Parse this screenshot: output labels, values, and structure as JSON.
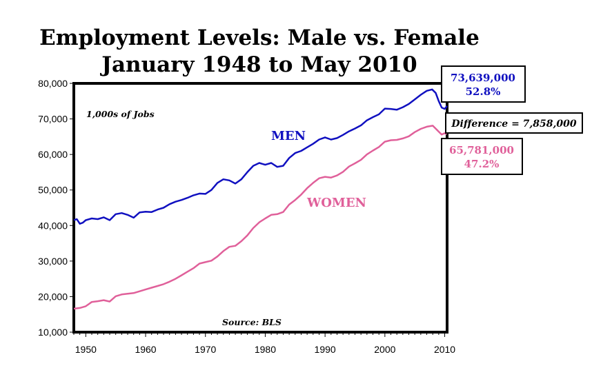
{
  "chart_data": {
    "type": "line",
    "title": "Employment Levels: Male vs. Female",
    "subtitle": "January 1948 to May 2010",
    "unit_note": "1,000s of Jobs",
    "source": "Source: BLS",
    "xlim": [
      1948,
      2010.4
    ],
    "ylim": [
      10000,
      80000
    ],
    "x_ticks": [
      1950,
      1960,
      1970,
      1980,
      1990,
      2000,
      2010
    ],
    "y_ticks": [
      10000,
      20000,
      30000,
      40000,
      50000,
      60000,
      70000,
      80000
    ],
    "y_tick_labels": [
      "10,000",
      "20,000",
      "30,000",
      "40,000",
      "50,000",
      "60,000",
      "70,000",
      "80,000"
    ],
    "grid": false,
    "colors": {
      "men": "#1010c0",
      "women": "#e0609a"
    },
    "series": [
      {
        "name": "MEN",
        "x": [
          1948,
          1948.5,
          1949,
          1949.5,
          1950,
          1951,
          1952,
          1953,
          1954,
          1955,
          1956,
          1957,
          1958,
          1959,
          1960,
          1961,
          1962,
          1963,
          1964,
          1965,
          1966,
          1967,
          1968,
          1969,
          1970,
          1971,
          1972,
          1973,
          1974,
          1975,
          1976,
          1977,
          1978,
          1979,
          1980,
          1981,
          1982,
          1983,
          1984,
          1985,
          1986,
          1987,
          1988,
          1989,
          1990,
          1991,
          1992,
          1993,
          1994,
          1995,
          1996,
          1997,
          1998,
          1999,
          2000,
          2001,
          2002,
          2003,
          2004,
          2005,
          2006,
          2007,
          2007.9,
          2008.5,
          2009,
          2009.5,
          2010,
          2010.4
        ],
        "y": [
          41500,
          41800,
          40500,
          40800,
          41500,
          42000,
          41800,
          42300,
          41500,
          43200,
          43500,
          43000,
          42200,
          43700,
          43900,
          43800,
          44500,
          45000,
          46000,
          46700,
          47200,
          47800,
          48500,
          49000,
          48900,
          50000,
          52000,
          53000,
          52700,
          51800,
          53000,
          55000,
          56800,
          57600,
          57100,
          57600,
          56500,
          56800,
          59000,
          60400,
          61000,
          62000,
          63000,
          64200,
          64800,
          64200,
          64600,
          65500,
          66500,
          67300,
          68200,
          69600,
          70500,
          71300,
          72900,
          72800,
          72600,
          73300,
          74200,
          75500,
          76800,
          77900,
          78300,
          77300,
          75000,
          73200,
          72800,
          73639
        ]
      },
      {
        "name": "WOMEN",
        "x": [
          1948,
          1949,
          1950,
          1951,
          1952,
          1953,
          1954,
          1955,
          1956,
          1957,
          1958,
          1959,
          1960,
          1961,
          1962,
          1963,
          1964,
          1965,
          1966,
          1967,
          1968,
          1969,
          1970,
          1971,
          1972,
          1973,
          1974,
          1975,
          1976,
          1977,
          1978,
          1979,
          1980,
          1981,
          1982,
          1983,
          1984,
          1985,
          1986,
          1987,
          1988,
          1989,
          1990,
          1991,
          1992,
          1993,
          1994,
          1995,
          1996,
          1997,
          1998,
          1999,
          2000,
          2001,
          2002,
          2003,
          2004,
          2005,
          2006,
          2007,
          2008,
          2009,
          2009.5,
          2010,
          2010.4
        ],
        "y": [
          16600,
          16800,
          17300,
          18500,
          18700,
          19000,
          18600,
          20100,
          20600,
          20800,
          21000,
          21500,
          22000,
          22500,
          23000,
          23500,
          24200,
          25000,
          26000,
          27000,
          28000,
          29300,
          29700,
          30100,
          31300,
          32800,
          34000,
          34300,
          35600,
          37200,
          39300,
          40900,
          42000,
          43000,
          43200,
          43800,
          45900,
          47200,
          48700,
          50500,
          52000,
          53300,
          53700,
          53500,
          54100,
          55100,
          56600,
          57500,
          58500,
          60000,
          61100,
          62100,
          63600,
          64000,
          64100,
          64500,
          65100,
          66300,
          67200,
          67800,
          68100,
          66400,
          65600,
          66000,
          65781
        ]
      }
    ],
    "series_labels": {
      "men": "MEN",
      "women": "WOMEN"
    },
    "annotations": {
      "men_box": {
        "value": "73,639,000",
        "share": "52.8%"
      },
      "women_box": {
        "value": "65,781,000",
        "share": "47.2%"
      },
      "difference": "Difference = 7,858,000"
    }
  }
}
